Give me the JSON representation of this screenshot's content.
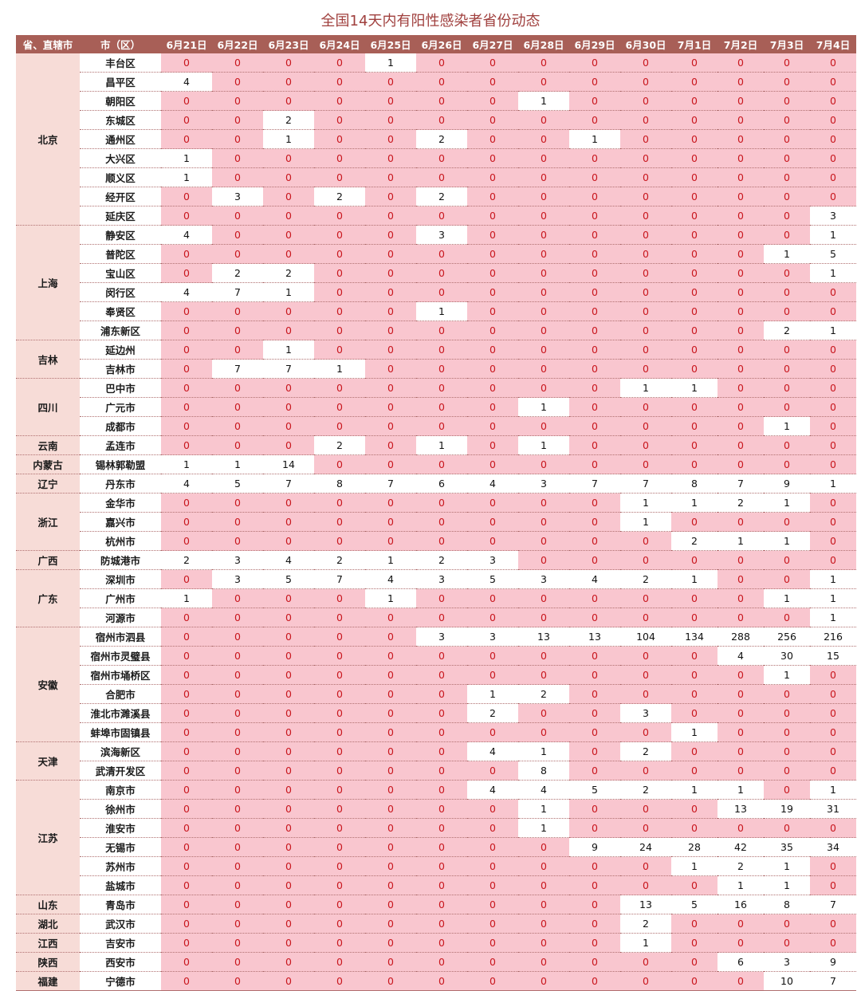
{
  "title": "全国14天内有阳性感染者省份动态",
  "header": {
    "province": "省、直辖市",
    "city": "市（区）",
    "dates": [
      "6月21日",
      "6月22日",
      "6月23日",
      "6月24日",
      "6月25日",
      "6月26日",
      "6月27日",
      "6月28日",
      "6月29日",
      "6月30日",
      "7月1日",
      "7月2日",
      "7月3日",
      "7月4日"
    ]
  },
  "groups": [
    {
      "province": "北京",
      "rows": [
        {
          "city": "丰台区",
          "values": [
            0,
            0,
            0,
            0,
            1,
            0,
            0,
            0,
            0,
            0,
            0,
            0,
            0,
            0
          ]
        },
        {
          "city": "昌平区",
          "values": [
            4,
            0,
            0,
            0,
            0,
            0,
            0,
            0,
            0,
            0,
            0,
            0,
            0,
            0
          ]
        },
        {
          "city": "朝阳区",
          "values": [
            0,
            0,
            0,
            0,
            0,
            0,
            0,
            1,
            0,
            0,
            0,
            0,
            0,
            0
          ]
        },
        {
          "city": "东城区",
          "values": [
            0,
            0,
            2,
            0,
            0,
            0,
            0,
            0,
            0,
            0,
            0,
            0,
            0,
            0
          ]
        },
        {
          "city": "通州区",
          "values": [
            0,
            0,
            1,
            0,
            0,
            2,
            0,
            0,
            1,
            0,
            0,
            0,
            0,
            0
          ]
        },
        {
          "city": "大兴区",
          "values": [
            1,
            0,
            0,
            0,
            0,
            0,
            0,
            0,
            0,
            0,
            0,
            0,
            0,
            0
          ]
        },
        {
          "city": "顺义区",
          "values": [
            1,
            0,
            0,
            0,
            0,
            0,
            0,
            0,
            0,
            0,
            0,
            0,
            0,
            0
          ]
        },
        {
          "city": "经开区",
          "values": [
            0,
            3,
            0,
            2,
            0,
            2,
            0,
            0,
            0,
            0,
            0,
            0,
            0,
            0
          ]
        },
        {
          "city": "延庆区",
          "values": [
            0,
            0,
            0,
            0,
            0,
            0,
            0,
            0,
            0,
            0,
            0,
            0,
            0,
            3
          ]
        }
      ]
    },
    {
      "province": "上海",
      "rows": [
        {
          "city": "静安区",
          "values": [
            4,
            0,
            0,
            0,
            0,
            3,
            0,
            0,
            0,
            0,
            0,
            0,
            0,
            1
          ]
        },
        {
          "city": "普陀区",
          "values": [
            0,
            0,
            0,
            0,
            0,
            0,
            0,
            0,
            0,
            0,
            0,
            0,
            1,
            5
          ]
        },
        {
          "city": "宝山区",
          "values": [
            0,
            2,
            2,
            0,
            0,
            0,
            0,
            0,
            0,
            0,
            0,
            0,
            0,
            1
          ]
        },
        {
          "city": "闵行区",
          "values": [
            4,
            7,
            1,
            0,
            0,
            0,
            0,
            0,
            0,
            0,
            0,
            0,
            0,
            0
          ]
        },
        {
          "city": "奉贤区",
          "values": [
            0,
            0,
            0,
            0,
            0,
            1,
            0,
            0,
            0,
            0,
            0,
            0,
            0,
            0
          ]
        },
        {
          "city": "浦东新区",
          "values": [
            0,
            0,
            0,
            0,
            0,
            0,
            0,
            0,
            0,
            0,
            0,
            0,
            2,
            1
          ]
        }
      ]
    },
    {
      "province": "吉林",
      "rows": [
        {
          "city": "延边州",
          "values": [
            0,
            0,
            1,
            0,
            0,
            0,
            0,
            0,
            0,
            0,
            0,
            0,
            0,
            0
          ]
        },
        {
          "city": "吉林市",
          "values": [
            0,
            7,
            7,
            1,
            0,
            0,
            0,
            0,
            0,
            0,
            0,
            0,
            0,
            0
          ]
        }
      ]
    },
    {
      "province": "四川",
      "rows": [
        {
          "city": "巴中市",
          "values": [
            0,
            0,
            0,
            0,
            0,
            0,
            0,
            0,
            0,
            1,
            1,
            0,
            0,
            0
          ]
        },
        {
          "city": "广元市",
          "values": [
            0,
            0,
            0,
            0,
            0,
            0,
            0,
            1,
            0,
            0,
            0,
            0,
            0,
            0
          ]
        },
        {
          "city": "成都市",
          "values": [
            0,
            0,
            0,
            0,
            0,
            0,
            0,
            0,
            0,
            0,
            0,
            0,
            1,
            0
          ]
        }
      ]
    },
    {
      "province": "云南",
      "rows": [
        {
          "city": "孟连市",
          "values": [
            0,
            0,
            0,
            2,
            0,
            1,
            0,
            1,
            0,
            0,
            0,
            0,
            0,
            0
          ]
        }
      ]
    },
    {
      "province": "内蒙古",
      "rows": [
        {
          "city": "锡林郭勒盟",
          "values": [
            1,
            1,
            14,
            0,
            0,
            0,
            0,
            0,
            0,
            0,
            0,
            0,
            0,
            0
          ]
        }
      ]
    },
    {
      "province": "辽宁",
      "rows": [
        {
          "city": "丹东市",
          "values": [
            4,
            5,
            7,
            8,
            7,
            6,
            4,
            3,
            7,
            7,
            8,
            7,
            9,
            1
          ]
        }
      ]
    },
    {
      "province": "浙江",
      "rows": [
        {
          "city": "金华市",
          "values": [
            0,
            0,
            0,
            0,
            0,
            0,
            0,
            0,
            0,
            1,
            1,
            2,
            1,
            0
          ]
        },
        {
          "city": "嘉兴市",
          "values": [
            0,
            0,
            0,
            0,
            0,
            0,
            0,
            0,
            0,
            1,
            0,
            0,
            0,
            0
          ]
        },
        {
          "city": "杭州市",
          "values": [
            0,
            0,
            0,
            0,
            0,
            0,
            0,
            0,
            0,
            0,
            2,
            1,
            1,
            0
          ]
        }
      ]
    },
    {
      "province": "广西",
      "rows": [
        {
          "city": "防城港市",
          "values": [
            2,
            3,
            4,
            2,
            1,
            2,
            3,
            0,
            0,
            0,
            0,
            0,
            0,
            0
          ]
        }
      ]
    },
    {
      "province": "广东",
      "rows": [
        {
          "city": "深圳市",
          "values": [
            0,
            3,
            5,
            7,
            4,
            3,
            5,
            3,
            4,
            2,
            1,
            0,
            0,
            1
          ]
        },
        {
          "city": "广州市",
          "values": [
            1,
            0,
            0,
            0,
            1,
            0,
            0,
            0,
            0,
            0,
            0,
            0,
            1,
            1
          ]
        },
        {
          "city": "河源市",
          "values": [
            0,
            0,
            0,
            0,
            0,
            0,
            0,
            0,
            0,
            0,
            0,
            0,
            0,
            1
          ]
        }
      ]
    },
    {
      "province": "安徽",
      "rows": [
        {
          "city": "宿州市泗县",
          "values": [
            0,
            0,
            0,
            0,
            0,
            3,
            3,
            13,
            13,
            104,
            134,
            288,
            256,
            216
          ]
        },
        {
          "city": "宿州市灵璧县",
          "values": [
            0,
            0,
            0,
            0,
            0,
            0,
            0,
            0,
            0,
            0,
            0,
            4,
            30,
            15
          ]
        },
        {
          "city": "宿州市埇桥区",
          "values": [
            0,
            0,
            0,
            0,
            0,
            0,
            0,
            0,
            0,
            0,
            0,
            0,
            1,
            0
          ]
        },
        {
          "city": "合肥市",
          "values": [
            0,
            0,
            0,
            0,
            0,
            0,
            1,
            2,
            0,
            0,
            0,
            0,
            0,
            0
          ]
        },
        {
          "city": "淮北市濉溪县",
          "values": [
            0,
            0,
            0,
            0,
            0,
            0,
            2,
            0,
            0,
            3,
            0,
            0,
            0,
            0
          ]
        },
        {
          "city": "蚌埠市固镇县",
          "values": [
            0,
            0,
            0,
            0,
            0,
            0,
            0,
            0,
            0,
            0,
            1,
            0,
            0,
            0
          ]
        }
      ]
    },
    {
      "province": "天津",
      "rows": [
        {
          "city": "滨海新区",
          "values": [
            0,
            0,
            0,
            0,
            0,
            0,
            4,
            1,
            0,
            2,
            0,
            0,
            0,
            0
          ]
        },
        {
          "city": "武清开发区",
          "values": [
            0,
            0,
            0,
            0,
            0,
            0,
            0,
            8,
            0,
            0,
            0,
            0,
            0,
            0
          ]
        }
      ]
    },
    {
      "province": "江苏",
      "rows": [
        {
          "city": "南京市",
          "values": [
            0,
            0,
            0,
            0,
            0,
            0,
            4,
            4,
            5,
            2,
            1,
            1,
            0,
            1
          ]
        },
        {
          "city": "徐州市",
          "values": [
            0,
            0,
            0,
            0,
            0,
            0,
            0,
            1,
            0,
            0,
            0,
            13,
            19,
            31
          ]
        },
        {
          "city": "淮安市",
          "values": [
            0,
            0,
            0,
            0,
            0,
            0,
            0,
            1,
            0,
            0,
            0,
            0,
            0,
            0
          ]
        },
        {
          "city": "无锡市",
          "values": [
            0,
            0,
            0,
            0,
            0,
            0,
            0,
            0,
            9,
            24,
            28,
            42,
            35,
            34
          ]
        },
        {
          "city": "苏州市",
          "values": [
            0,
            0,
            0,
            0,
            0,
            0,
            0,
            0,
            0,
            0,
            1,
            2,
            1,
            0
          ]
        },
        {
          "city": "盐城市",
          "values": [
            0,
            0,
            0,
            0,
            0,
            0,
            0,
            0,
            0,
            0,
            0,
            1,
            1,
            0
          ]
        }
      ]
    },
    {
      "province": "山东",
      "rows": [
        {
          "city": "青岛市",
          "values": [
            0,
            0,
            0,
            0,
            0,
            0,
            0,
            0,
            0,
            13,
            5,
            16,
            8,
            7
          ]
        }
      ]
    },
    {
      "province": "湖北",
      "rows": [
        {
          "city": "武汉市",
          "values": [
            0,
            0,
            0,
            0,
            0,
            0,
            0,
            0,
            0,
            2,
            0,
            0,
            0,
            0
          ]
        }
      ]
    },
    {
      "province": "江西",
      "rows": [
        {
          "city": "吉安市",
          "values": [
            0,
            0,
            0,
            0,
            0,
            0,
            0,
            0,
            0,
            1,
            0,
            0,
            0,
            0
          ]
        }
      ]
    },
    {
      "province": "陕西",
      "rows": [
        {
          "city": "西安市",
          "values": [
            0,
            0,
            0,
            0,
            0,
            0,
            0,
            0,
            0,
            0,
            0,
            6,
            3,
            9
          ]
        }
      ]
    },
    {
      "province": "福建",
      "rows": [
        {
          "city": "宁德市",
          "values": [
            0,
            0,
            0,
            0,
            0,
            0,
            0,
            0,
            0,
            0,
            0,
            0,
            10,
            7
          ]
        }
      ]
    }
  ]
}
